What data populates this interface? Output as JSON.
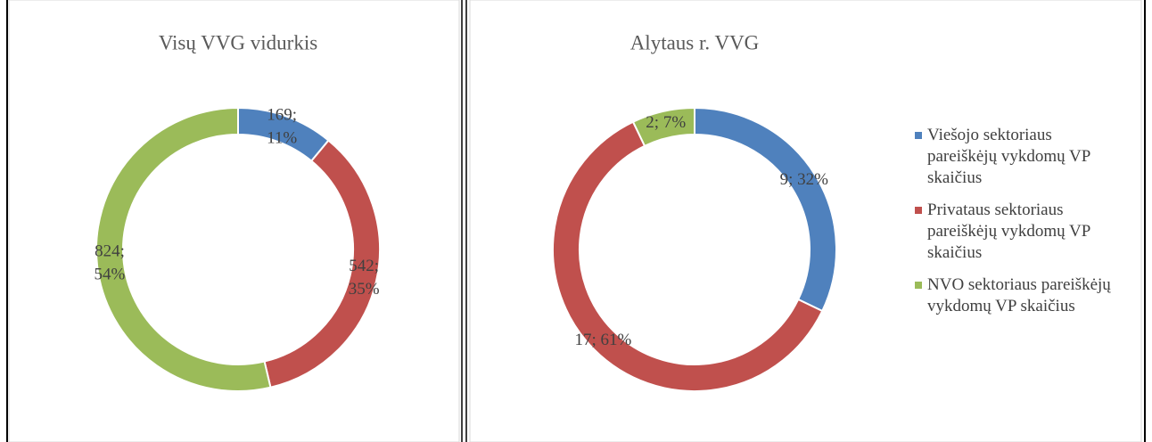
{
  "chart_data": [
    {
      "type": "pie",
      "title": "Visų VVG vidurkis",
      "values": [
        169,
        542,
        824
      ],
      "value_labels": [
        "169; 11%",
        "542; 35%",
        "824; 54%"
      ],
      "colors": [
        "#4f81bd",
        "#c0504d",
        "#9bbb59"
      ]
    },
    {
      "type": "pie",
      "title": "Alytaus r. VVG",
      "categories": [
        "Viešojo sektoriaus pareiškėjų vykdomų VP skaičius",
        "Privataus sektoriaus pareiškėjų vykdomų VP skaičius",
        "NVO sektoriaus pareiškėjų vykdomų VP skaičius"
      ],
      "values": [
        9,
        17,
        2
      ],
      "value_labels": [
        "9; 32%",
        "17; 61%",
        "2; 7%"
      ],
      "colors": [
        "#4f81bd",
        "#c0504d",
        "#9bbb59"
      ],
      "legend": "right"
    }
  ]
}
